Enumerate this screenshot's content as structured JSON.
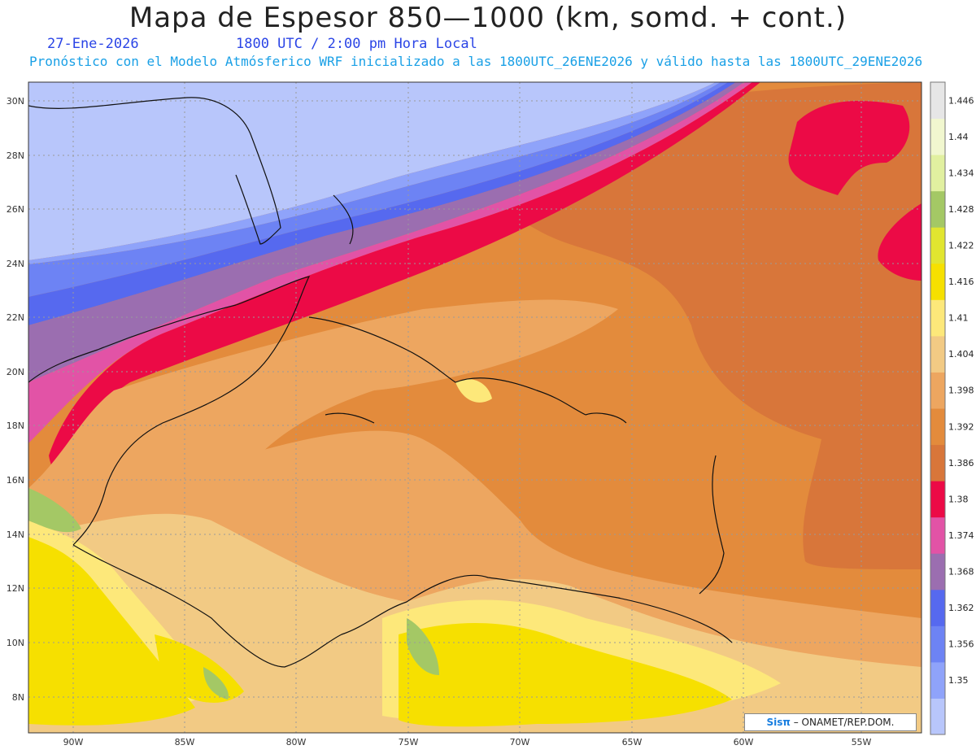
{
  "title": "Mapa de Espesor 850—1000 (km, somd. + cont.)",
  "date_label": "27-Ene-2026",
  "time_label": "1800 UTC / 2:00 pm Hora Local",
  "forecast_note": "Pronóstico con el Modelo Atmósferico WRF inicializado a las 1800UTC_26ENE2026 y válido hasta las  1800UTC_29ENE2026",
  "credit": {
    "logo": "Sisπ",
    "text": " – ONAMET/REP.DOM."
  },
  "map": {
    "lon_range": [
      -92,
      -52
    ],
    "lat_range": [
      6.8,
      30.7
    ],
    "lat_ticks": [
      "30N",
      "28N",
      "26N",
      "24N",
      "22N",
      "20N",
      "18N",
      "16N",
      "14N",
      "12N",
      "10N",
      "8N"
    ],
    "lon_ticks": [
      "90W",
      "85W",
      "80W",
      "75W",
      "70W",
      "65W",
      "60W",
      "55W"
    ],
    "grid": true
  },
  "colorbar": {
    "levels": [
      "1.35",
      "1.356",
      "1.362",
      "1.368",
      "1.374",
      "1.38",
      "1.386",
      "1.392",
      "1.398",
      "1.404",
      "1.41",
      "1.416",
      "1.422",
      "1.428",
      "1.434",
      "1.44",
      "1.446"
    ],
    "colors": [
      "#b8c6fb",
      "#8fa3fa",
      "#6d83f4",
      "#5669ef",
      "#9b6eb0",
      "#e253a6",
      "#ec0a46",
      "#d8763a",
      "#e38b3c",
      "#eda660",
      "#f2ca84",
      "#fde87a",
      "#f6e000",
      "#e1e530",
      "#a4c865",
      "#e1f0a0",
      "#f1f7cf",
      "#e6e6e6"
    ]
  }
}
